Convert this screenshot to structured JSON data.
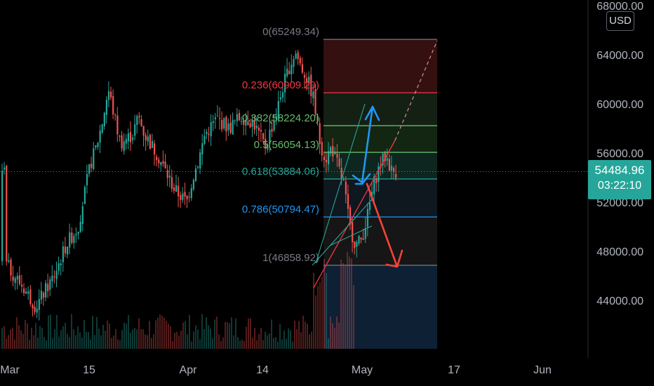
{
  "currency": "USD",
  "last_price": "54484.96",
  "countdown": "03:22:10",
  "colors": {
    "up": "#26a69a",
    "down": "#ef5350",
    "fib_red": "#f23645",
    "fib_green": "#66bb6a",
    "fib_teal": "#26a69a",
    "fib_blue": "#2196f3",
    "fib_grey": "#787b86",
    "arrow_blue": "#2196f3",
    "arrow_red": "#f44336"
  },
  "chart_data": {
    "type": "candlestick",
    "x_axis": {
      "ticks": [
        "Mar",
        "15",
        "Apr",
        "14",
        "May",
        "17",
        "Jun"
      ]
    },
    "y_axis": {
      "ticks": [
        "44000.00",
        "48000.00",
        "52000.00",
        "56000.00",
        "60000.00",
        "64000.00",
        "68000.00"
      ],
      "range": [
        40000,
        69000
      ]
    },
    "price_path": [
      [
        0,
        47000
      ],
      [
        3,
        45000
      ],
      [
        5,
        43500
      ],
      [
        8,
        46000
      ],
      [
        10,
        48500
      ],
      [
        12,
        50000
      ],
      [
        14,
        55000
      ],
      [
        15,
        56500
      ],
      [
        16,
        58500
      ],
      [
        17,
        61200
      ],
      [
        18,
        59000
      ],
      [
        19,
        56800
      ],
      [
        21,
        57500
      ],
      [
        22,
        59000
      ],
      [
        23,
        57500
      ],
      [
        25,
        56000
      ],
      [
        27,
        54000
      ],
      [
        28,
        53000
      ],
      [
        30,
        52000
      ],
      [
        31,
        54000
      ],
      [
        32,
        55500
      ],
      [
        33,
        57500
      ],
      [
        35,
        58800
      ],
      [
        37,
        58000
      ],
      [
        39,
        59000
      ],
      [
        41,
        58500
      ],
      [
        43,
        56500
      ],
      [
        44,
        58000
      ],
      [
        45,
        59500
      ],
      [
        46,
        61500
      ],
      [
        47,
        63000
      ],
      [
        48,
        64200
      ],
      [
        49,
        63000
      ],
      [
        50,
        62000
      ],
      [
        51,
        60500
      ],
      [
        52,
        57000
      ],
      [
        53,
        55500
      ],
      [
        54,
        56500
      ],
      [
        55,
        55000
      ],
      [
        56,
        53500
      ],
      [
        57,
        50000
      ],
      [
        58,
        48500
      ],
      [
        59,
        49000
      ],
      [
        60,
        51000
      ],
      [
        61,
        53500
      ],
      [
        62,
        55000
      ],
      [
        63,
        55800
      ],
      [
        64,
        54500
      ],
      [
        65,
        54485
      ]
    ],
    "fibonacci": [
      {
        "label": "0(65249.34)",
        "price": 65249.34,
        "color_key": "fib_grey"
      },
      {
        "label": "0.236(60909.20)",
        "price": 60909.2,
        "color_key": "fib_red"
      },
      {
        "label": "0.382(58224.20)",
        "price": 58224.2,
        "color_key": "fib_green"
      },
      {
        "label": "0.5(56054.13)",
        "price": 56054.13,
        "color_key": "fib_green"
      },
      {
        "label": "0.618(53884.06)",
        "price": 53884.06,
        "color_key": "fib_teal"
      },
      {
        "label": "0.786(50794.47)",
        "price": 50794.47,
        "color_key": "fib_blue"
      },
      {
        "label": "1(46858.92)",
        "price": 46858.92,
        "color_key": "fib_grey"
      }
    ]
  }
}
